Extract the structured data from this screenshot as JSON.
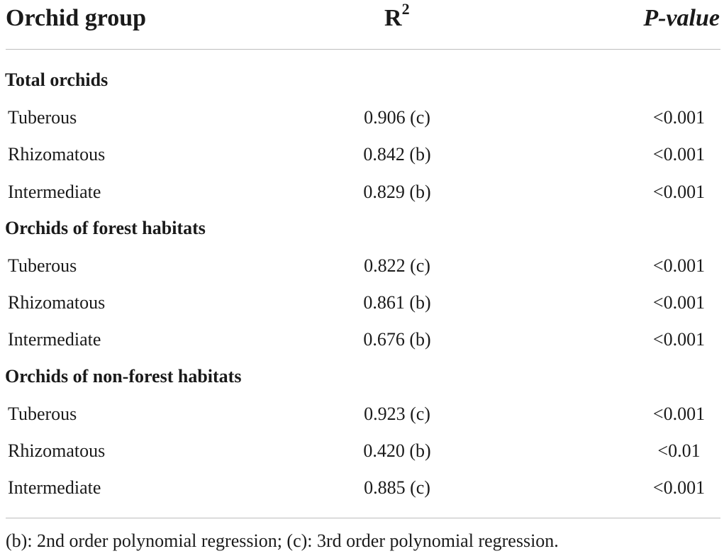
{
  "header": {
    "group_label": "Orchid group",
    "r2_label": "R",
    "r2_superscript": "2",
    "p_label": "P-value"
  },
  "sections": [
    {
      "title": "Total orchids",
      "rows": [
        {
          "name": "Tuberous",
          "r2": "0.906 (c)",
          "p": "<0.001"
        },
        {
          "name": "Rhizomatous",
          "r2": "0.842 (b)",
          "p": "<0.001"
        },
        {
          "name": "Intermediate",
          "r2": "0.829 (b)",
          "p": "<0.001"
        }
      ]
    },
    {
      "title": "Orchids of forest habitats",
      "rows": [
        {
          "name": "Tuberous",
          "r2": "0.822 (c)",
          "p": "<0.001"
        },
        {
          "name": "Rhizomatous",
          "r2": "0.861 (b)",
          "p": "<0.001"
        },
        {
          "name": "Intermediate",
          "r2": "0.676 (b)",
          "p": "<0.001"
        }
      ]
    },
    {
      "title": "Orchids of non-forest habitats",
      "rows": [
        {
          "name": "Tuberous",
          "r2": "0.923 (c)",
          "p": "<0.001"
        },
        {
          "name": "Rhizomatous",
          "r2": "0.420 (b)",
          "p": "<0.01"
        },
        {
          "name": "Intermediate",
          "r2": "0.885 (c)",
          "p": "<0.001"
        }
      ]
    }
  ],
  "footnote": "(b): 2nd order polynomial regression; (c): 3rd order polynomial regression."
}
